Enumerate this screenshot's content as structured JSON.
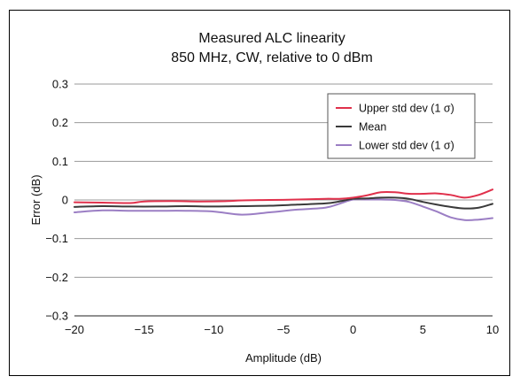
{
  "chart_data": {
    "type": "line",
    "title": [
      "Measured ALC linearity",
      "850 MHz, CW, relative to 0 dBm"
    ],
    "xlabel": "Amplitude (dB)",
    "ylabel": "Error (dB)",
    "xlim": [
      -20,
      10
    ],
    "ylim": [
      -0.3,
      0.3
    ],
    "xticks": [
      -20,
      -15,
      -10,
      -5,
      0,
      5,
      10
    ],
    "xtick_labels": [
      "−20",
      "−15",
      "−10",
      "−5",
      "0",
      "5",
      "10"
    ],
    "yticks": [
      0.3,
      0.2,
      0.1,
      0,
      -0.1,
      -0.2,
      -0.3
    ],
    "ytick_labels": [
      "0.3",
      "0.2",
      "0.1",
      "0",
      "−0.1",
      "−0.2",
      "−0.3"
    ],
    "grid": "horizontal",
    "legend_position": "top-right",
    "series": [
      {
        "name": "Upper std dev (1 σ)",
        "color": "#e0304b",
        "points": [
          [
            -20,
            -0.006
          ],
          [
            -18,
            -0.007
          ],
          [
            -16,
            -0.008
          ],
          [
            -15,
            -0.004
          ],
          [
            -13,
            -0.003
          ],
          [
            -11,
            -0.004
          ],
          [
            -9,
            -0.003
          ],
          [
            -8,
            -0.001
          ],
          [
            -6,
            0.0
          ],
          [
            -4,
            0.001
          ],
          [
            -2,
            0.003
          ],
          [
            -1,
            0.003
          ],
          [
            0,
            0.006
          ],
          [
            1,
            0.012
          ],
          [
            2,
            0.02
          ],
          [
            3,
            0.02
          ],
          [
            4,
            0.016
          ],
          [
            5,
            0.016
          ],
          [
            6,
            0.017
          ],
          [
            7,
            0.013
          ],
          [
            8,
            0.006
          ],
          [
            9,
            0.013
          ],
          [
            10,
            0.027
          ]
        ]
      },
      {
        "name": "Mean",
        "color": "#3a3a3a",
        "points": [
          [
            -20,
            -0.018
          ],
          [
            -18,
            -0.016
          ],
          [
            -16,
            -0.017
          ],
          [
            -14,
            -0.017
          ],
          [
            -12,
            -0.016
          ],
          [
            -10,
            -0.017
          ],
          [
            -8,
            -0.016
          ],
          [
            -6,
            -0.015
          ],
          [
            -4,
            -0.012
          ],
          [
            -2,
            -0.009
          ],
          [
            -1,
            -0.004
          ],
          [
            0,
            0.003
          ],
          [
            1,
            0.004
          ],
          [
            2,
            0.006
          ],
          [
            3,
            0.006
          ],
          [
            4,
            0.003
          ],
          [
            5,
            -0.005
          ],
          [
            6,
            -0.012
          ],
          [
            7,
            -0.018
          ],
          [
            8,
            -0.022
          ],
          [
            9,
            -0.02
          ],
          [
            10,
            -0.01
          ]
        ]
      },
      {
        "name": "Lower std dev (1 σ)",
        "color": "#9b7ec4",
        "points": [
          [
            -20,
            -0.032
          ],
          [
            -18,
            -0.027
          ],
          [
            -16,
            -0.028
          ],
          [
            -14,
            -0.028
          ],
          [
            -12,
            -0.028
          ],
          [
            -10,
            -0.03
          ],
          [
            -8,
            -0.038
          ],
          [
            -6,
            -0.032
          ],
          [
            -4,
            -0.025
          ],
          [
            -2,
            -0.02
          ],
          [
            -1,
            -0.01
          ],
          [
            0,
            0.001
          ],
          [
            1,
            0.001
          ],
          [
            2,
            0.001
          ],
          [
            3,
            0.0
          ],
          [
            4,
            -0.005
          ],
          [
            5,
            -0.017
          ],
          [
            6,
            -0.03
          ],
          [
            7,
            -0.045
          ],
          [
            8,
            -0.052
          ],
          [
            9,
            -0.051
          ],
          [
            10,
            -0.047
          ]
        ]
      }
    ]
  }
}
